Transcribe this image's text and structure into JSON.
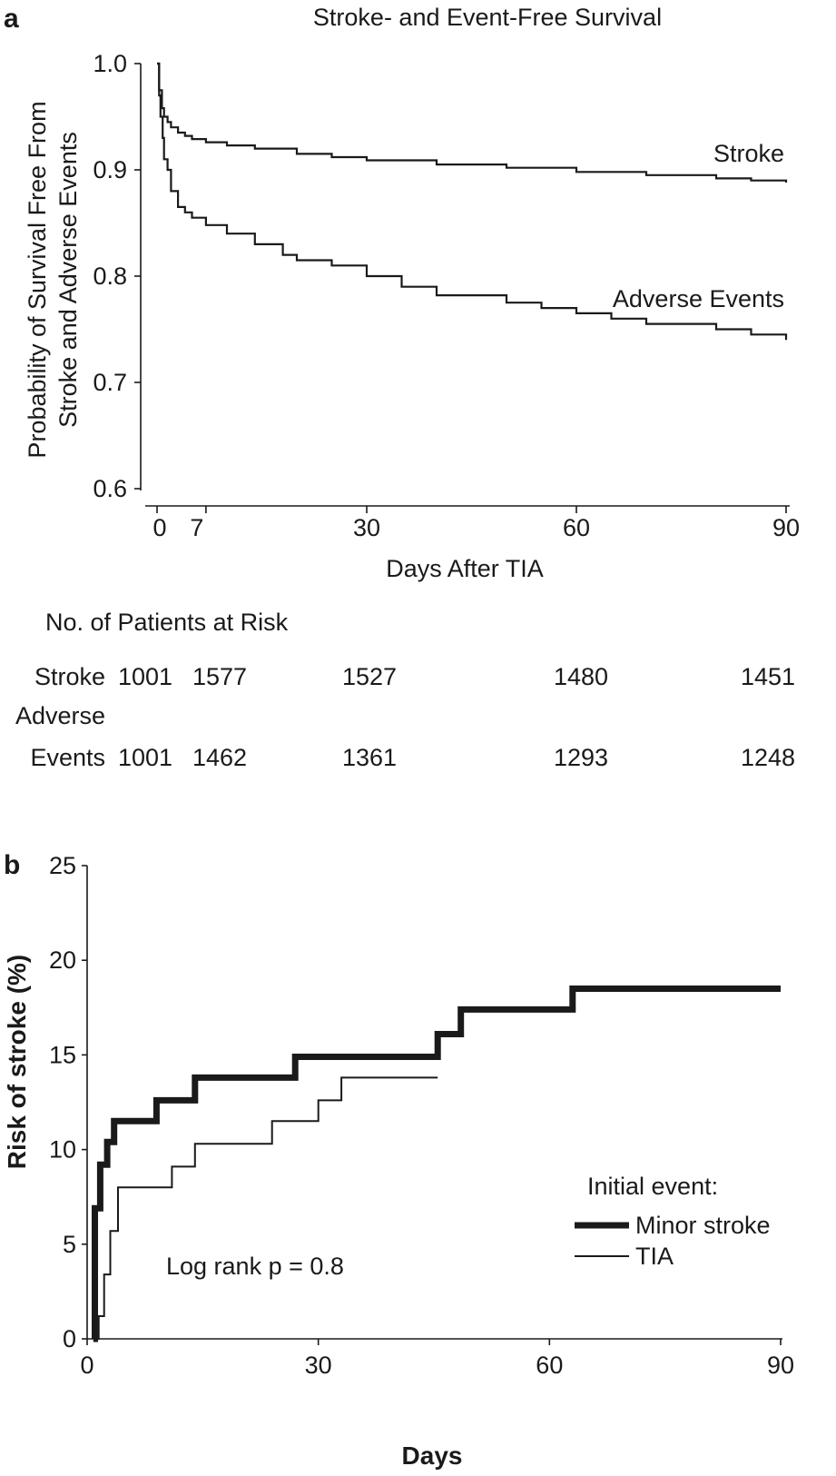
{
  "colors": {
    "ink": "#1a1a1a",
    "background": "#ffffff"
  },
  "risk_table": {
    "heading": "No. of Patients at Risk",
    "rows": [
      {
        "label": "Stroke",
        "values": [
          "1001",
          "1577",
          "1527",
          "1480",
          "1451"
        ]
      },
      {
        "label_line1": "Adverse",
        "label": "Events",
        "values": [
          "1001",
          "1462",
          "1361",
          "1293",
          "1248"
        ]
      }
    ]
  },
  "chart_data": [
    {
      "panel": "a",
      "type": "line",
      "step": true,
      "title": "Stroke- and Event-Free Survival",
      "xlabel": "Days After TIA",
      "ylabel_lines": [
        "Probability of Survival Free From",
        "Stroke and Adverse Events"
      ],
      "xlim": [
        0,
        90
      ],
      "ylim": [
        0.6,
        1.0
      ],
      "xticks": [
        0,
        7,
        30,
        60,
        90
      ],
      "yticks": [
        0.6,
        0.7,
        0.8,
        0.9,
        1.0
      ],
      "ytick_labels": [
        "0.6",
        "0.7",
        "0.8",
        "0.9",
        "1.0"
      ],
      "series": [
        {
          "name": "Stroke",
          "label": "Stroke",
          "x": [
            0,
            0.3,
            0.7,
            1,
            1.5,
            2,
            3,
            4,
            5,
            7,
            10,
            14,
            20,
            25,
            30,
            40,
            50,
            60,
            70,
            80,
            85,
            90
          ],
          "y": [
            1.0,
            0.975,
            0.958,
            0.95,
            0.945,
            0.94,
            0.935,
            0.932,
            0.929,
            0.926,
            0.923,
            0.92,
            0.915,
            0.912,
            0.909,
            0.905,
            0.902,
            0.898,
            0.895,
            0.892,
            0.89,
            0.888
          ]
        },
        {
          "name": "Adverse Events",
          "label": "Adverse Events",
          "x": [
            0,
            0.3,
            0.5,
            0.8,
            1,
            1.5,
            2,
            3,
            4,
            5,
            7,
            10,
            14,
            18,
            20,
            25,
            30,
            35,
            40,
            50,
            55,
            60,
            65,
            70,
            80,
            85,
            90
          ],
          "y": [
            1.0,
            0.97,
            0.95,
            0.93,
            0.91,
            0.9,
            0.88,
            0.865,
            0.86,
            0.855,
            0.848,
            0.84,
            0.83,
            0.82,
            0.815,
            0.81,
            0.8,
            0.79,
            0.782,
            0.775,
            0.77,
            0.765,
            0.76,
            0.755,
            0.75,
            0.745,
            0.74
          ]
        }
      ]
    },
    {
      "panel": "b",
      "type": "line",
      "step": true,
      "title": "",
      "xlabel": "Days",
      "ylabel": "Risk of stroke (%)",
      "xlim": [
        0,
        90
      ],
      "ylim": [
        0,
        25
      ],
      "xticks": [
        0,
        30,
        60,
        90
      ],
      "yticks": [
        0,
        5,
        10,
        15,
        20,
        25
      ],
      "annotation": "Log rank p = 0.8",
      "legend_title": "Initial event:",
      "legend_position": "lower-right",
      "series": [
        {
          "name": "Minor stroke",
          "style": "thick",
          "x": [
            0.8,
            1,
            1.7,
            2.6,
            3.5,
            9,
            14,
            27,
            45.5,
            48.5,
            63,
            90
          ],
          "y": [
            0,
            6.9,
            9.2,
            10.4,
            11.5,
            12.6,
            13.8,
            14.9,
            16.1,
            17.4,
            18.5,
            18.5
          ]
        },
        {
          "name": "TIA",
          "style": "thin",
          "x": [
            1,
            1.5,
            2.2,
            3,
            4,
            11,
            14,
            24,
            30,
            33,
            45.5
          ],
          "y": [
            0,
            1.2,
            3.4,
            5.7,
            8.0,
            9.1,
            10.3,
            11.5,
            12.6,
            13.8,
            13.8
          ]
        }
      ]
    }
  ]
}
